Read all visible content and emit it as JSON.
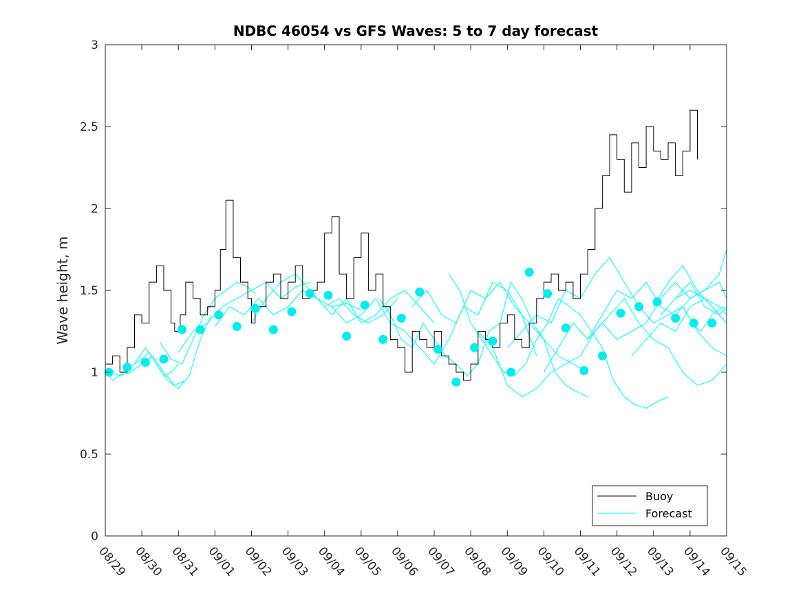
{
  "chart_data": {
    "type": "line",
    "title": "NDBC 46054 vs GFS Waves: 5 to 7 day forecast",
    "xlabel": "",
    "ylabel": "Wave height, m",
    "xlim": [
      0,
      17
    ],
    "ylim": [
      0,
      3
    ],
    "grid": false,
    "legend_position": "bottom-right",
    "x_tick_labels": [
      "08/29",
      "08/30",
      "08/31",
      "09/01",
      "09/02",
      "09/03",
      "09/04",
      "09/05",
      "09/06",
      "09/07",
      "09/08",
      "09/09",
      "09/10",
      "09/11",
      "09/12",
      "09/13",
      "09/14",
      "09/15"
    ],
    "y_ticks": [
      0,
      0.5,
      1,
      1.5,
      2,
      2.5,
      3
    ],
    "y_tick_labels": [
      "0",
      "0.5",
      "1",
      "1.5",
      "2",
      "2.5",
      "3"
    ],
    "legend": [
      "Buoy",
      "Forecast"
    ],
    "colors": {
      "buoy": "#000000",
      "forecast": "#00ffff",
      "forecast_marker": "#00eeee"
    },
    "series": [
      {
        "name": "Buoy",
        "x": [
          0.0,
          0.2,
          0.4,
          0.6,
          0.8,
          1.0,
          1.2,
          1.4,
          1.6,
          1.8,
          1.9,
          2.05,
          2.2,
          2.4,
          2.6,
          2.8,
          3.0,
          3.15,
          3.3,
          3.5,
          3.7,
          3.9,
          4.0,
          4.1,
          4.25,
          4.4,
          4.6,
          4.8,
          5.0,
          5.2,
          5.4,
          5.6,
          5.8,
          6.0,
          6.2,
          6.4,
          6.6,
          6.8,
          7.0,
          7.2,
          7.4,
          7.6,
          7.8,
          8.0,
          8.2,
          8.4,
          8.6,
          8.8,
          9.0,
          9.2,
          9.4,
          9.6,
          9.8,
          10.0,
          10.2,
          10.4,
          10.6,
          10.8,
          11.0,
          11.2,
          11.4,
          11.6,
          11.8,
          12.0,
          12.2,
          12.4,
          12.6,
          12.8,
          13.0,
          13.2,
          13.4,
          13.6,
          13.8,
          14.0,
          14.2,
          14.4,
          14.6,
          14.8,
          15.0,
          15.2,
          15.4,
          15.6,
          15.8,
          16.0,
          16.2
        ],
        "values": [
          1.05,
          1.1,
          1.0,
          1.15,
          1.35,
          1.3,
          1.55,
          1.65,
          1.5,
          1.3,
          1.25,
          1.35,
          1.55,
          1.45,
          1.35,
          1.4,
          1.5,
          1.75,
          2.05,
          1.7,
          1.55,
          1.45,
          1.3,
          1.4,
          1.4,
          1.55,
          1.6,
          1.45,
          1.55,
          1.65,
          1.45,
          1.5,
          1.55,
          1.85,
          1.95,
          1.6,
          1.45,
          1.7,
          1.85,
          1.5,
          1.6,
          1.4,
          1.2,
          1.15,
          1.0,
          1.25,
          1.2,
          1.15,
          1.25,
          1.1,
          1.05,
          1.0,
          0.95,
          1.05,
          1.25,
          1.2,
          1.15,
          1.3,
          1.35,
          1.2,
          1.15,
          1.3,
          1.45,
          1.55,
          1.6,
          1.5,
          1.55,
          1.45,
          1.6,
          1.75,
          2.0,
          2.2,
          2.45,
          2.3,
          2.1,
          2.4,
          2.25,
          2.5,
          2.35,
          2.3,
          2.4,
          2.2,
          2.35,
          2.6,
          2.3
        ]
      },
      {
        "name": "Forecast",
        "x": [
          0.0,
          0.2,
          0.4,
          0.6,
          0.8,
          1.0,
          1.2,
          1.4,
          1.6,
          1.8,
          2.0
        ],
        "values": [
          1.02,
          0.95,
          0.98,
          1.02,
          1.05,
          1.08,
          1.12,
          1.05,
          0.98,
          1.0,
          1.05
        ]
      },
      {
        "name": "Forecast",
        "x": [
          0.1,
          0.4,
          0.7,
          1.0,
          1.3,
          1.6,
          1.9,
          2.2
        ],
        "values": [
          1.0,
          0.98,
          1.0,
          1.05,
          1.1,
          1.0,
          0.92,
          0.95
        ]
      },
      {
        "name": "Forecast",
        "x": [
          0.8,
          1.1,
          1.4,
          1.7,
          2.0,
          2.3,
          2.6,
          2.9
        ],
        "values": [
          1.05,
          1.15,
          1.05,
          0.95,
          0.9,
          0.98,
          1.2,
          1.35
        ]
      },
      {
        "name": "Forecast",
        "x": [
          1.5,
          1.8,
          2.1,
          2.4,
          2.7,
          3.0,
          3.3,
          3.6,
          3.9,
          4.1
        ],
        "values": [
          1.18,
          1.08,
          1.05,
          1.2,
          1.35,
          1.45,
          1.5,
          1.55,
          1.52,
          1.48
        ]
      },
      {
        "name": "Forecast",
        "x": [
          2.0,
          2.4,
          2.8,
          3.2,
          3.6,
          4.0,
          4.4,
          4.8,
          5.2,
          5.6
        ],
        "values": [
          1.12,
          1.25,
          1.3,
          1.4,
          1.45,
          1.5,
          1.55,
          1.45,
          1.52,
          1.55
        ]
      },
      {
        "name": "Forecast",
        "x": [
          3.0,
          3.4,
          3.8,
          4.2,
          4.6,
          5.0,
          5.4,
          5.8,
          6.2,
          6.6,
          7.0
        ],
        "values": [
          1.28,
          1.4,
          1.35,
          1.45,
          1.35,
          1.4,
          1.5,
          1.45,
          1.4,
          1.42,
          1.38
        ]
      },
      {
        "name": "Forecast",
        "x": [
          4.0,
          4.4,
          4.8,
          5.2,
          5.6,
          6.0,
          6.4,
          6.8,
          7.2,
          7.6,
          8.0
        ],
        "values": [
          1.3,
          1.45,
          1.55,
          1.6,
          1.5,
          1.4,
          1.45,
          1.35,
          1.3,
          1.35,
          1.45
        ]
      },
      {
        "name": "Forecast",
        "x": [
          5.0,
          5.4,
          5.8,
          6.2,
          6.6,
          7.0,
          7.4,
          7.8,
          8.2,
          8.6,
          9.0
        ],
        "values": [
          1.4,
          1.5,
          1.45,
          1.35,
          1.45,
          1.3,
          1.35,
          1.45,
          1.5,
          1.4,
          1.3
        ]
      },
      {
        "name": "Forecast",
        "x": [
          6.2,
          6.6,
          7.0,
          7.4,
          7.8,
          8.2,
          8.6,
          9.0,
          9.4,
          9.8,
          10.2,
          10.6,
          11.0,
          11.4,
          11.8
        ],
        "values": [
          1.4,
          1.3,
          1.35,
          1.45,
          1.3,
          1.25,
          1.15,
          1.05,
          1.2,
          1.4,
          1.35,
          1.55,
          1.5,
          1.35,
          1.1
        ]
      },
      {
        "name": "Forecast",
        "x": [
          7.5,
          7.8,
          8.1,
          8.4,
          8.7,
          9.0,
          9.3,
          9.6,
          9.9,
          10.2,
          10.5,
          10.8,
          11.1,
          11.4,
          11.7,
          12.0,
          12.3,
          12.6,
          12.9,
          13.2
        ],
        "values": [
          1.45,
          1.35,
          1.2,
          1.15,
          1.3,
          1.2,
          1.1,
          1.05,
          0.98,
          1.05,
          1.25,
          1.3,
          1.55,
          1.45,
          1.3,
          1.2,
          1.0,
          0.92,
          0.88,
          0.85
        ]
      },
      {
        "name": "Forecast",
        "x": [
          8.4,
          8.8,
          9.2,
          9.6,
          10.0,
          10.4,
          10.8,
          11.2,
          11.6,
          12.0,
          12.4,
          12.8,
          13.2
        ],
        "values": [
          1.4,
          1.5,
          1.35,
          1.3,
          1.5,
          1.45,
          1.55,
          1.4,
          1.3,
          1.2,
          1.1,
          1.05,
          1.0
        ]
      },
      {
        "name": "Forecast",
        "x": [
          9.4,
          9.7,
          10.0,
          10.3,
          10.6,
          10.9,
          11.2,
          11.5,
          11.8,
          12.1,
          12.4,
          12.7,
          13.0,
          13.3,
          13.6,
          13.9,
          14.2,
          14.5,
          14.8,
          15.1,
          15.4
        ],
        "values": [
          1.6,
          1.5,
          1.3,
          1.2,
          1.1,
          1.0,
          0.98,
          1.05,
          1.2,
          1.3,
          1.45,
          1.4,
          1.35,
          1.25,
          1.15,
          0.95,
          0.85,
          0.8,
          0.78,
          0.82,
          0.85
        ]
      },
      {
        "name": "Forecast",
        "x": [
          10.2,
          10.6,
          11.0,
          11.4,
          11.8,
          12.2,
          12.6,
          13.0,
          13.4,
          13.8,
          14.2,
          14.6,
          15.0,
          15.4,
          15.8,
          16.2,
          16.6,
          17.0
        ],
        "values": [
          1.25,
          1.15,
          0.92,
          0.85,
          0.9,
          1.0,
          1.05,
          1.1,
          1.25,
          1.35,
          1.45,
          1.3,
          1.2,
          1.15,
          1.0,
          0.92,
          0.95,
          1.05
        ]
      },
      {
        "name": "Forecast",
        "x": [
          11.0,
          11.4,
          11.8,
          12.2,
          12.6,
          13.0,
          13.4,
          13.8,
          14.2,
          14.6,
          15.0,
          15.4,
          15.8,
          16.2,
          16.6,
          17.0
        ],
        "values": [
          1.15,
          1.25,
          1.35,
          1.3,
          1.5,
          1.45,
          1.6,
          1.7,
          1.55,
          1.4,
          1.3,
          1.35,
          1.4,
          1.25,
          1.15,
          1.1
        ]
      },
      {
        "name": "Forecast",
        "x": [
          12.0,
          12.4,
          12.8,
          13.2,
          13.6,
          14.0,
          14.4,
          14.8,
          15.2,
          15.6,
          16.0,
          16.4,
          16.8,
          17.0
        ],
        "values": [
          1.0,
          1.15,
          1.3,
          1.2,
          1.35,
          1.5,
          1.45,
          1.55,
          1.4,
          1.35,
          1.45,
          1.5,
          1.6,
          1.75
        ]
      },
      {
        "name": "Forecast",
        "x": [
          13.2,
          13.6,
          14.0,
          14.4,
          14.8,
          15.2,
          15.6,
          16.0,
          16.4,
          16.8,
          17.0
        ],
        "values": [
          1.2,
          1.3,
          1.2,
          1.25,
          1.3,
          1.45,
          1.55,
          1.45,
          1.5,
          1.55,
          1.45
        ]
      },
      {
        "name": "Forecast",
        "x": [
          14.4,
          14.8,
          15.2,
          15.6,
          16.0,
          16.4,
          16.8,
          17.0
        ],
        "values": [
          1.1,
          1.2,
          1.3,
          1.25,
          1.4,
          1.45,
          1.4,
          1.35
        ]
      },
      {
        "name": "Forecast",
        "x": [
          15.0,
          15.4,
          15.8,
          16.2,
          16.6,
          17.0
        ],
        "values": [
          1.4,
          1.55,
          1.65,
          1.5,
          1.4,
          1.3
        ]
      },
      {
        "name": "Forecast",
        "x": [
          15.2,
          15.6,
          16.0,
          16.4,
          16.8,
          17.0
        ],
        "values": [
          1.35,
          1.45,
          1.5,
          1.45,
          1.35,
          1.3
        ]
      },
      {
        "name": "Forecast",
        "x": [
          15.6,
          16.0,
          16.4,
          16.8,
          17.0
        ],
        "values": [
          1.45,
          1.55,
          1.4,
          1.35,
          1.4
        ]
      },
      {
        "name": "Forecast",
        "x": [
          16.0,
          16.3,
          16.6,
          16.9,
          17.0
        ],
        "values": [
          1.3,
          1.25,
          1.35,
          1.4,
          1.38
        ]
      }
    ],
    "markers": {
      "name": "Forecast",
      "x": [
        0.1,
        0.6,
        1.1,
        1.6,
        2.1,
        2.6,
        3.1,
        3.6,
        4.1,
        4.6,
        5.1,
        5.6,
        6.1,
        6.6,
        7.1,
        7.6,
        8.1,
        8.6,
        9.1,
        9.6,
        10.1,
        10.6,
        11.1,
        11.6,
        12.1,
        12.6,
        13.1,
        13.6,
        14.1,
        14.6,
        15.1,
        15.6,
        16.1,
        16.6
      ],
      "values": [
        1.0,
        1.03,
        1.06,
        1.08,
        1.26,
        1.26,
        1.35,
        1.28,
        1.39,
        1.26,
        1.37,
        1.48,
        1.47,
        1.22,
        1.41,
        1.2,
        1.33,
        1.49,
        1.14,
        0.94,
        1.15,
        1.19,
        1.0,
        1.61,
        1.48,
        1.27,
        1.01,
        1.1,
        1.36,
        1.4,
        1.43,
        1.33,
        1.3,
        1.3
      ]
    }
  }
}
